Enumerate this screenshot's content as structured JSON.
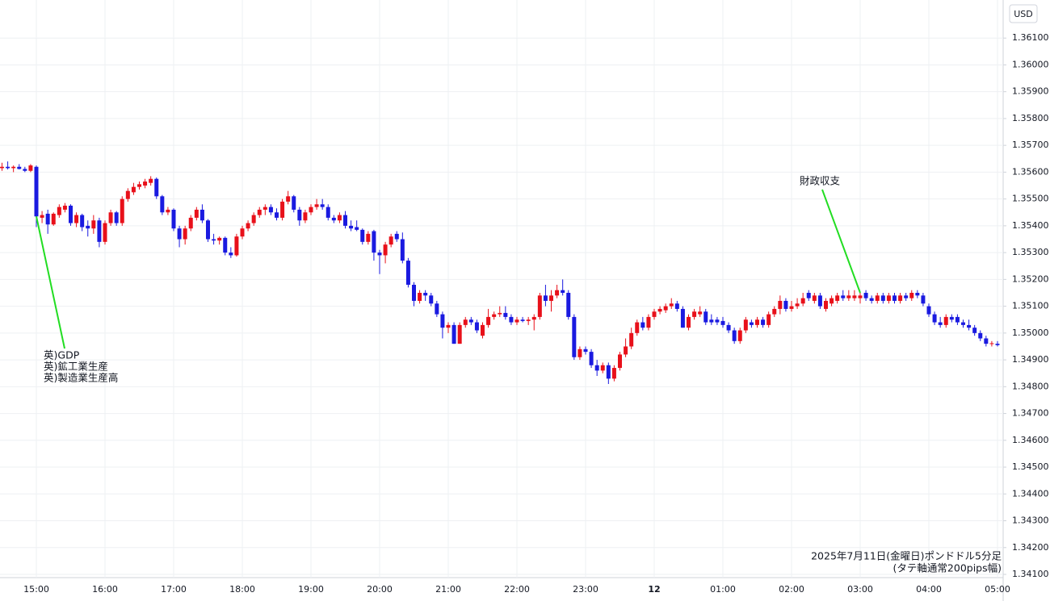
{
  "chart_data": {
    "type": "candlestick",
    "currency": "USD",
    "caption": [
      "2025年7月11日(金曜日)ポンドドル5分足",
      "(タテ軸通常200pips幅)"
    ],
    "up_color": "#e8101a",
    "down_color": "#1a1ae0",
    "grid": true,
    "ylim": [
      1.34088,
      1.36242
    ],
    "yticks": [
      {
        "value": 1.341,
        "label": "1.34100"
      },
      {
        "value": 1.342,
        "label": "1.34200"
      },
      {
        "value": 1.343,
        "label": "1.34300"
      },
      {
        "value": 1.344,
        "label": "1.34400"
      },
      {
        "value": 1.345,
        "label": "1.34500"
      },
      {
        "value": 1.346,
        "label": "1.34600"
      },
      {
        "value": 1.347,
        "label": "1.34700"
      },
      {
        "value": 1.348,
        "label": "1.34800"
      },
      {
        "value": 1.349,
        "label": "1.34900"
      },
      {
        "value": 1.35,
        "label": "1.35000"
      },
      {
        "value": 1.351,
        "label": "1.35100"
      },
      {
        "value": 1.352,
        "label": "1.35200"
      },
      {
        "value": 1.353,
        "label": "1.35300"
      },
      {
        "value": 1.354,
        "label": "1.35400"
      },
      {
        "value": 1.355,
        "label": "1.35500"
      },
      {
        "value": 1.356,
        "label": "1.35600"
      },
      {
        "value": 1.357,
        "label": "1.35700"
      },
      {
        "value": 1.358,
        "label": "1.35800"
      },
      {
        "value": 1.359,
        "label": "1.35900"
      },
      {
        "value": 1.36,
        "label": "1.36000"
      },
      {
        "value": 1.361,
        "label": "1.36100"
      }
    ],
    "xticks": [
      "15:00",
      "16:00",
      "17:00",
      "18:00",
      "19:00",
      "20:00",
      "21:00",
      "22:00",
      "23:00",
      {
        "value": "00:00",
        "label": "12"
      },
      "01:00",
      "02:00",
      "03:00",
      "04:00",
      "05:00"
    ],
    "annotations": [
      {
        "x": "15:00",
        "lines": [
          "英)GDP",
          "英)鉱工業生産",
          "英)製造業生産高"
        ]
      },
      {
        "x": "03:00",
        "lines": [
          "財政収支"
        ]
      }
    ],
    "x": [
      "14:30",
      "14:35",
      "14:40",
      "14:45",
      "14:50",
      "14:55",
      "15:00",
      "15:05",
      "15:10",
      "15:15",
      "15:20",
      "15:25",
      "15:30",
      "15:35",
      "15:40",
      "15:45",
      "15:50",
      "15:55",
      "16:00",
      "16:05",
      "16:10",
      "16:15",
      "16:20",
      "16:25",
      "16:30",
      "16:35",
      "16:40",
      "16:45",
      "16:50",
      "16:55",
      "17:00",
      "17:05",
      "17:10",
      "17:15",
      "17:20",
      "17:25",
      "17:30",
      "17:35",
      "17:40",
      "17:45",
      "17:50",
      "17:55",
      "18:00",
      "18:05",
      "18:10",
      "18:15",
      "18:20",
      "18:25",
      "18:30",
      "18:35",
      "18:40",
      "18:45",
      "18:50",
      "18:55",
      "19:00",
      "19:05",
      "19:10",
      "19:15",
      "19:20",
      "19:25",
      "19:30",
      "19:35",
      "19:40",
      "19:45",
      "19:50",
      "19:55",
      "20:00",
      "20:05",
      "20:10",
      "20:15",
      "20:20",
      "20:25",
      "20:30",
      "20:35",
      "20:40",
      "20:45",
      "20:50",
      "20:55",
      "21:00",
      "21:05",
      "21:10",
      "21:15",
      "21:20",
      "21:25",
      "21:30",
      "21:35",
      "21:40",
      "21:45",
      "21:50",
      "21:55",
      "22:00",
      "22:05",
      "22:10",
      "22:15",
      "22:20",
      "22:25",
      "22:30",
      "22:35",
      "22:40",
      "22:45",
      "22:50",
      "22:55",
      "23:00",
      "23:05",
      "23:10",
      "23:15",
      "23:20",
      "23:25",
      "23:30",
      "23:35",
      "23:40",
      "23:45",
      "23:50",
      "23:55",
      "00:00",
      "00:05",
      "00:10",
      "00:15",
      "00:20",
      "00:25",
      "00:30",
      "00:35",
      "00:40",
      "00:45",
      "00:50",
      "00:55",
      "01:00",
      "01:05",
      "01:10",
      "01:15",
      "01:20",
      "01:25",
      "01:30",
      "01:35",
      "01:40",
      "01:45",
      "01:50",
      "01:55",
      "02:00",
      "02:05",
      "02:10",
      "02:15",
      "02:20",
      "02:25",
      "02:30",
      "02:35",
      "02:40",
      "02:45",
      "02:50",
      "02:55",
      "03:00",
      "03:05",
      "03:10",
      "03:15",
      "03:20",
      "03:25",
      "03:30",
      "03:35",
      "03:40",
      "03:45",
      "03:50",
      "03:55",
      "04:00",
      "04:05",
      "04:10",
      "04:15",
      "04:20",
      "04:25",
      "04:30",
      "04:35",
      "04:40",
      "04:45",
      "04:50",
      "04:55",
      "05:00"
    ],
    "ohlc": [
      [
        1.35615,
        1.35635,
        1.35605,
        1.3562
      ],
      [
        1.3562,
        1.3564,
        1.3561,
        1.35615
      ],
      [
        1.35615,
        1.35625,
        1.356,
        1.3562
      ],
      [
        1.3562,
        1.3563,
        1.3561,
        1.35612
      ],
      [
        1.35612,
        1.3562,
        1.356,
        1.35605
      ],
      [
        1.35605,
        1.3563,
        1.356,
        1.35625
      ],
      [
        1.3562,
        1.35625,
        1.35395,
        1.35435
      ],
      [
        1.3543,
        1.35455,
        1.3541,
        1.3544
      ],
      [
        1.35445,
        1.3546,
        1.3537,
        1.35405
      ],
      [
        1.35405,
        1.3545,
        1.354,
        1.35445
      ],
      [
        1.3544,
        1.3548,
        1.3543,
        1.3547
      ],
      [
        1.3546,
        1.35485,
        1.3545,
        1.35475
      ],
      [
        1.35475,
        1.3548,
        1.354,
        1.3541
      ],
      [
        1.3541,
        1.3545,
        1.35395,
        1.3544
      ],
      [
        1.3544,
        1.35445,
        1.3538,
        1.35395
      ],
      [
        1.354,
        1.3542,
        1.3536,
        1.3539
      ],
      [
        1.3539,
        1.3544,
        1.3537,
        1.3542
      ],
      [
        1.3542,
        1.3543,
        1.3532,
        1.3534
      ],
      [
        1.3534,
        1.3542,
        1.3533,
        1.3541
      ],
      [
        1.3541,
        1.3546,
        1.354,
        1.3545
      ],
      [
        1.3545,
        1.35455,
        1.354,
        1.3541
      ],
      [
        1.3541,
        1.3551,
        1.354,
        1.355
      ],
      [
        1.355,
        1.3554,
        1.3549,
        1.3553
      ],
      [
        1.35525,
        1.3556,
        1.35515,
        1.35545
      ],
      [
        1.35545,
        1.35565,
        1.35535,
        1.35555
      ],
      [
        1.3555,
        1.35575,
        1.3554,
        1.35565
      ],
      [
        1.3556,
        1.35585,
        1.3555,
        1.35575
      ],
      [
        1.35575,
        1.3558,
        1.355,
        1.3551
      ],
      [
        1.3551,
        1.35515,
        1.3544,
        1.3545
      ],
      [
        1.3545,
        1.3547,
        1.3544,
        1.3546
      ],
      [
        1.3546,
        1.35465,
        1.3538,
        1.3539
      ],
      [
        1.3539,
        1.354,
        1.3532,
        1.3535
      ],
      [
        1.3535,
        1.354,
        1.3533,
        1.3539
      ],
      [
        1.3539,
        1.3544,
        1.3538,
        1.3543
      ],
      [
        1.3543,
        1.3547,
        1.3542,
        1.3546
      ],
      [
        1.3546,
        1.3548,
        1.3541,
        1.3542
      ],
      [
        1.3542,
        1.35425,
        1.3534,
        1.3535
      ],
      [
        1.3535,
        1.3537,
        1.3533,
        1.35345
      ],
      [
        1.35345,
        1.3536,
        1.3533,
        1.35355
      ],
      [
        1.35355,
        1.3536,
        1.3529,
        1.353
      ],
      [
        1.353,
        1.3532,
        1.3528,
        1.3529
      ],
      [
        1.3529,
        1.3537,
        1.35285,
        1.3536
      ],
      [
        1.3536,
        1.354,
        1.3535,
        1.3539
      ],
      [
        1.3539,
        1.3542,
        1.3538,
        1.3541
      ],
      [
        1.3541,
        1.3545,
        1.354,
        1.3544
      ],
      [
        1.3544,
        1.3547,
        1.3543,
        1.3546
      ],
      [
        1.3546,
        1.3548,
        1.3544,
        1.3547
      ],
      [
        1.3547,
        1.3548,
        1.3544,
        1.3545
      ],
      [
        1.3545,
        1.35465,
        1.3542,
        1.3543
      ],
      [
        1.3543,
        1.355,
        1.3542,
        1.3549
      ],
      [
        1.3549,
        1.3553,
        1.3548,
        1.3551
      ],
      [
        1.3551,
        1.35515,
        1.3545,
        1.3546
      ],
      [
        1.3546,
        1.3547,
        1.354,
        1.3542
      ],
      [
        1.3542,
        1.3546,
        1.3541,
        1.3545
      ],
      [
        1.3545,
        1.3548,
        1.3544,
        1.3547
      ],
      [
        1.3547,
        1.355,
        1.3546,
        1.3548
      ],
      [
        1.3548,
        1.355,
        1.3546,
        1.3547
      ],
      [
        1.3547,
        1.3548,
        1.3542,
        1.3543
      ],
      [
        1.3543,
        1.3544,
        1.3541,
        1.3542
      ],
      [
        1.3542,
        1.3545,
        1.3541,
        1.3544
      ],
      [
        1.3544,
        1.35455,
        1.3539,
        1.354
      ],
      [
        1.354,
        1.3542,
        1.3538,
        1.3539
      ],
      [
        1.35395,
        1.3542,
        1.3538,
        1.35385
      ],
      [
        1.35385,
        1.3539,
        1.3533,
        1.3534
      ],
      [
        1.3534,
        1.3538,
        1.3533,
        1.3537
      ],
      [
        1.3538,
        1.35385,
        1.3527,
        1.353
      ],
      [
        1.353,
        1.3531,
        1.3522,
        1.3529
      ],
      [
        1.3529,
        1.3534,
        1.3526,
        1.3533
      ],
      [
        1.3533,
        1.3537,
        1.3532,
        1.3536
      ],
      [
        1.3537,
        1.3538,
        1.3534,
        1.3535
      ],
      [
        1.3535,
        1.35375,
        1.3526,
        1.3527
      ],
      [
        1.3527,
        1.3528,
        1.3517,
        1.3518
      ],
      [
        1.3518,
        1.3519,
        1.351,
        1.3512
      ],
      [
        1.3512,
        1.3516,
        1.3511,
        1.3515
      ],
      [
        1.3515,
        1.3516,
        1.3512,
        1.3514
      ],
      [
        1.3514,
        1.3515,
        1.351,
        1.3511
      ],
      [
        1.3511,
        1.3512,
        1.3506,
        1.3507
      ],
      [
        1.3507,
        1.3508,
        1.3498,
        1.3502
      ],
      [
        1.3502,
        1.3504,
        1.35,
        1.3503
      ],
      [
        1.3503,
        1.3504,
        1.3496,
        1.3496
      ],
      [
        1.3496,
        1.3504,
        1.3496,
        1.3503
      ],
      [
        1.3503,
        1.3506,
        1.3502,
        1.3505
      ],
      [
        1.3505,
        1.3506,
        1.3503,
        1.3504
      ],
      [
        1.3504,
        1.3505,
        1.35,
        1.3501
      ],
      [
        1.3499,
        1.3504,
        1.3498,
        1.3503
      ],
      [
        1.3503,
        1.3509,
        1.3502,
        1.3506
      ],
      [
        1.3506,
        1.3508,
        1.3505,
        1.3507
      ],
      [
        1.3507,
        1.351,
        1.3506,
        1.35075
      ],
      [
        1.35075,
        1.351,
        1.3505,
        1.3506
      ],
      [
        1.3506,
        1.3507,
        1.3503,
        1.3504
      ],
      [
        1.3504,
        1.3506,
        1.3503,
        1.3505
      ],
      [
        1.3505,
        1.3506,
        1.3504,
        1.35045
      ],
      [
        1.35045,
        1.3506,
        1.3503,
        1.3505
      ],
      [
        1.3505,
        1.3507,
        1.3501,
        1.3506
      ],
      [
        1.3506,
        1.3515,
        1.3505,
        1.3514
      ],
      [
        1.3514,
        1.3518,
        1.351,
        1.3512
      ],
      [
        1.3512,
        1.3516,
        1.3508,
        1.3514
      ],
      [
        1.3514,
        1.3518,
        1.3513,
        1.3516
      ],
      [
        1.3516,
        1.352,
        1.3514,
        1.3515
      ],
      [
        1.3515,
        1.3516,
        1.3505,
        1.3506
      ],
      [
        1.3506,
        1.3507,
        1.349,
        1.3491
      ],
      [
        1.3491,
        1.3495,
        1.349,
        1.3494
      ],
      [
        1.3494,
        1.3495,
        1.3492,
        1.3493
      ],
      [
        1.3493,
        1.3494,
        1.3487,
        1.3488
      ],
      [
        1.3488,
        1.349,
        1.3484,
        1.3486
      ],
      [
        1.3486,
        1.3489,
        1.3485,
        1.3488
      ],
      [
        1.3488,
        1.3489,
        1.3481,
        1.3483
      ],
      [
        1.3483,
        1.3488,
        1.3482,
        1.3487
      ],
      [
        1.3487,
        1.3493,
        1.3486,
        1.3492
      ],
      [
        1.3492,
        1.3498,
        1.3491,
        1.3495
      ],
      [
        1.3495,
        1.3502,
        1.3494,
        1.35
      ],
      [
        1.35,
        1.3505,
        1.3499,
        1.3504
      ],
      [
        1.3504,
        1.3506,
        1.3501,
        1.3502
      ],
      [
        1.3502,
        1.3507,
        1.3501,
        1.3506
      ],
      [
        1.3506,
        1.3509,
        1.3505,
        1.3508
      ],
      [
        1.3508,
        1.351,
        1.3507,
        1.3509
      ],
      [
        1.35085,
        1.3511,
        1.35075,
        1.351
      ],
      [
        1.351,
        1.3513,
        1.3509,
        1.3511
      ],
      [
        1.3511,
        1.3512,
        1.3508,
        1.3509
      ],
      [
        1.3509,
        1.351,
        1.3502,
        1.3502
      ],
      [
        1.3502,
        1.3507,
        1.3501,
        1.3506
      ],
      [
        1.3506,
        1.3509,
        1.3505,
        1.3508
      ],
      [
        1.3507,
        1.351,
        1.3506,
        1.3508
      ],
      [
        1.3508,
        1.3509,
        1.3503,
        1.3504
      ],
      [
        1.3505,
        1.3507,
        1.3503,
        1.3504
      ],
      [
        1.3505,
        1.3506,
        1.3503,
        1.3504
      ],
      [
        1.35045,
        1.3506,
        1.3502,
        1.3503
      ],
      [
        1.3503,
        1.3504,
        1.35,
        1.3501
      ],
      [
        1.3501,
        1.3502,
        1.3496,
        1.3497
      ],
      [
        1.3497,
        1.3502,
        1.3496,
        1.3501
      ],
      [
        1.3501,
        1.3506,
        1.35,
        1.3505
      ],
      [
        1.3504,
        1.3505,
        1.3502,
        1.3503
      ],
      [
        1.3503,
        1.3506,
        1.3502,
        1.3505
      ],
      [
        1.3505,
        1.3506,
        1.3502,
        1.3503
      ],
      [
        1.3503,
        1.3508,
        1.3502,
        1.3507
      ],
      [
        1.3507,
        1.351,
        1.3506,
        1.3509
      ],
      [
        1.3509,
        1.3514,
        1.3507,
        1.3512
      ],
      [
        1.3512,
        1.3513,
        1.3508,
        1.3509
      ],
      [
        1.3509,
        1.3512,
        1.3508,
        1.351
      ],
      [
        1.351,
        1.3513,
        1.3509,
        1.3511
      ],
      [
        1.3511,
        1.3515,
        1.351,
        1.3513
      ],
      [
        1.3515,
        1.3516,
        1.3512,
        1.3513
      ],
      [
        1.3512,
        1.3515,
        1.3511,
        1.3514
      ],
      [
        1.3514,
        1.3515,
        1.3509,
        1.351
      ],
      [
        1.3509,
        1.3513,
        1.3508,
        1.3512
      ],
      [
        1.3511,
        1.3514,
        1.351,
        1.3513
      ],
      [
        1.3512,
        1.3515,
        1.3511,
        1.3514
      ],
      [
        1.3514,
        1.3516,
        1.3512,
        1.3513
      ],
      [
        1.3513,
        1.3516,
        1.3512,
        1.3514
      ],
      [
        1.3513,
        1.3516,
        1.3512,
        1.3514
      ],
      [
        1.3513,
        1.3515,
        1.3511,
        1.3514
      ],
      [
        1.3515,
        1.3516,
        1.3512,
        1.3513
      ],
      [
        1.3513,
        1.3514,
        1.3511,
        1.3512
      ],
      [
        1.3512,
        1.3515,
        1.3511,
        1.3514
      ],
      [
        1.3514,
        1.3515,
        1.3511,
        1.3512
      ],
      [
        1.3512,
        1.3515,
        1.3511,
        1.3514
      ],
      [
        1.3514,
        1.3515,
        1.3511,
        1.3512
      ],
      [
        1.3512,
        1.3515,
        1.3511,
        1.3514
      ],
      [
        1.3514,
        1.3515,
        1.3512,
        1.3513
      ],
      [
        1.3513,
        1.3516,
        1.3512,
        1.3515
      ],
      [
        1.3515,
        1.3516,
        1.3513,
        1.3514
      ],
      [
        1.3514,
        1.3515,
        1.351,
        1.3511
      ],
      [
        1.351,
        1.3511,
        1.3506,
        1.3507
      ],
      [
        1.3507,
        1.3508,
        1.3503,
        1.3504
      ],
      [
        1.3504,
        1.3506,
        1.3502,
        1.3503
      ],
      [
        1.3503,
        1.3507,
        1.3502,
        1.3506
      ],
      [
        1.3506,
        1.3507,
        1.3504,
        1.3505
      ],
      [
        1.3506,
        1.3507,
        1.3503,
        1.3504
      ],
      [
        1.3504,
        1.3505,
        1.3502,
        1.3503
      ],
      [
        1.3503,
        1.3505,
        1.3501,
        1.3502
      ],
      [
        1.3502,
        1.3503,
        1.3499,
        1.35
      ],
      [
        1.35,
        1.3501,
        1.3497,
        1.3498
      ],
      [
        1.3498,
        1.3499,
        1.3495,
        1.3496
      ],
      [
        1.3496,
        1.3497,
        1.3495,
        1.34962
      ],
      [
        1.3496,
        1.3497,
        1.3495,
        1.34955
      ]
    ]
  }
}
